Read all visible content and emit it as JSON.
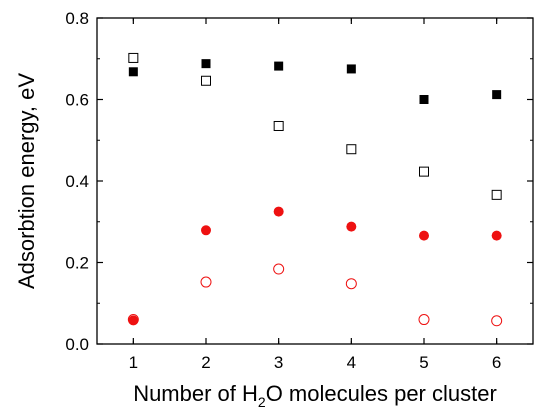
{
  "chart_data": {
    "type": "scatter",
    "title": "",
    "xlabel": {
      "before": "Number of H",
      "sub": "2",
      "after": "O molecules per cluster"
    },
    "ylabel": "Adsorbtion energy, eV",
    "xlim": [
      0.5,
      6.5
    ],
    "ylim": [
      0.0,
      0.8
    ],
    "xticks": [
      "1",
      "2",
      "3",
      "4",
      "5",
      "6"
    ],
    "yticks": [
      "0.0",
      "0.2",
      "0.4",
      "0.6",
      "0.8"
    ],
    "grid": false,
    "legend": "none",
    "series": [
      {
        "marker": "square-filled",
        "color": "#000000",
        "x": [
          1,
          2,
          3,
          4,
          5,
          6
        ],
        "y": [
          0.668,
          0.688,
          0.682,
          0.675,
          0.6,
          0.612
        ]
      },
      {
        "marker": "square-open",
        "color": "#000000",
        "x": [
          1,
          2,
          3,
          4,
          5,
          6
        ],
        "y": [
          0.702,
          0.646,
          0.535,
          0.478,
          0.423,
          0.366
        ]
      },
      {
        "marker": "circle-filled",
        "color": "#ee1111",
        "x": [
          1,
          2,
          3,
          4,
          5,
          6
        ],
        "y": [
          0.058,
          0.279,
          0.325,
          0.288,
          0.266,
          0.266
        ]
      },
      {
        "marker": "circle-open",
        "color": "#ee1111",
        "x": [
          1,
          2,
          3,
          4,
          5,
          6
        ],
        "y": [
          0.06,
          0.152,
          0.184,
          0.148,
          0.06,
          0.057
        ]
      }
    ]
  }
}
